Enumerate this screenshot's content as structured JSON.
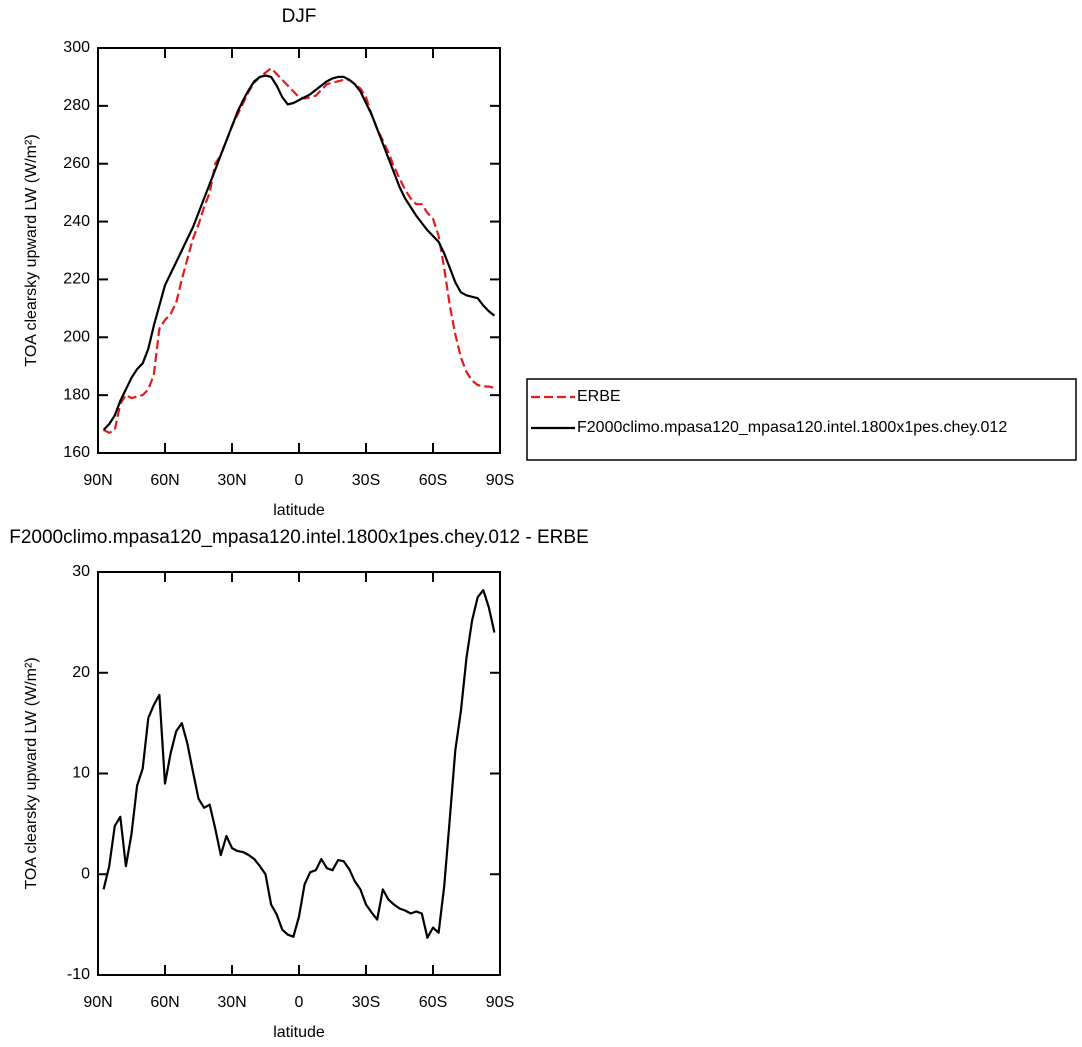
{
  "chart_data": [
    {
      "type": "line",
      "title": "DJF",
      "xlabel": "latitude",
      "ylabel": "TOA clearsky upward LW (W/m²)",
      "x": [
        87.5,
        85,
        82.5,
        80,
        77.5,
        75,
        72.5,
        70,
        67.5,
        65,
        62.5,
        60,
        57.5,
        55,
        52.5,
        50,
        47.5,
        45,
        42.5,
        40,
        37.5,
        35,
        32.5,
        30,
        27.5,
        25,
        22.5,
        20,
        17.5,
        15,
        12.5,
        10,
        7.5,
        5,
        2.5,
        0,
        -2.5,
        -5,
        -7.5,
        -10,
        -12.5,
        -15,
        -17.5,
        -20,
        -22.5,
        -25,
        -27.5,
        -30,
        -32.5,
        -35,
        -37.5,
        -40,
        -42.5,
        -45,
        -47.5,
        -50,
        -52.5,
        -55,
        -57.5,
        -60,
        -62.5,
        -65,
        -67.5,
        -70,
        -72.5,
        -75,
        -77.5,
        -80,
        -82.5,
        -85,
        -87.5
      ],
      "series": [
        {
          "name": "ERBE",
          "color": "#e41a1c",
          "dashed": true,
          "values": [
            168,
            167,
            168,
            177,
            180,
            179,
            179.5,
            180,
            182,
            187,
            203,
            206,
            208,
            212,
            220,
            227,
            234,
            239,
            245,
            250,
            260,
            263,
            268,
            273,
            277,
            281,
            285,
            288,
            290,
            291.5,
            293,
            291,
            289,
            287,
            285,
            283,
            282.5,
            283,
            283.5,
            285.5,
            287.5,
            288,
            288.5,
            289,
            289,
            287.5,
            286,
            283,
            277,
            272,
            268,
            264,
            259,
            255,
            251,
            248,
            246,
            246,
            243,
            241,
            235,
            224,
            211,
            201,
            193,
            188,
            185,
            183.5,
            183,
            183,
            182.5
          ]
        },
        {
          "name": "F2000climo.mpasa120_mpasa120.intel.1800x1pes.chey.012",
          "color": "#000000",
          "dashed": false,
          "values": [
            168,
            170,
            173,
            178,
            182,
            186,
            189,
            191,
            196,
            204,
            211,
            218,
            222,
            226,
            230,
            234,
            238,
            243,
            248,
            253,
            258,
            263,
            268,
            273,
            278,
            282,
            285.5,
            288.5,
            290,
            290.5,
            290,
            287,
            283,
            280.5,
            281,
            282,
            283,
            284,
            285.5,
            287,
            288.5,
            289.5,
            290,
            290,
            289,
            287.5,
            285,
            281,
            277,
            272,
            267,
            262,
            257,
            252,
            248,
            245,
            242,
            239.5,
            237,
            235,
            233,
            229,
            224,
            219,
            215.5,
            214.5,
            214,
            213.5,
            211,
            209,
            207.5
          ]
        }
      ],
      "xlim": [
        90,
        -90
      ],
      "xticks": [
        {
          "value": 90,
          "label": "90N"
        },
        {
          "value": 60,
          "label": "60N"
        },
        {
          "value": 30,
          "label": "30N"
        },
        0,
        {
          "value": -30,
          "label": "30S"
        },
        {
          "value": -60,
          "label": "60S"
        },
        {
          "value": -90,
          "label": "90S"
        }
      ],
      "ylim": [
        160,
        300
      ],
      "yticks": [
        160,
        180,
        200,
        220,
        240,
        260,
        280,
        300
      ],
      "legend": "right"
    },
    {
      "type": "line",
      "title": "F2000climo.mpasa120_mpasa120.intel.1800x1pes.chey.012 - ERBE",
      "xlabel": "latitude",
      "ylabel": "TOA clearsky upward LW (W/m²)",
      "x": [
        87.5,
        85,
        82.5,
        80,
        77.5,
        75,
        72.5,
        70,
        67.5,
        65,
        62.5,
        60,
        57.5,
        55,
        52.5,
        50,
        47.5,
        45,
        42.5,
        40,
        37.5,
        35,
        32.5,
        30,
        27.5,
        25,
        22.5,
        20,
        17.5,
        15,
        12.5,
        10,
        7.5,
        5,
        2.5,
        0,
        -2.5,
        -5,
        -7.5,
        -10,
        -12.5,
        -15,
        -17.5,
        -20,
        -22.5,
        -25,
        -27.5,
        -30,
        -32.5,
        -35,
        -37.5,
        -40,
        -42.5,
        -45,
        -47.5,
        -50,
        -52.5,
        -55,
        -57.5,
        -60,
        -62.5,
        -65,
        -67.5,
        -70,
        -72.5,
        -75,
        -77.5,
        -80,
        -82.5,
        -85,
        -87.5
      ],
      "values": [
        -1.5,
        0.8,
        4.8,
        5.7,
        0.8,
        4.0,
        8.8,
        10.5,
        15.5,
        16.8,
        17.8,
        9.0,
        12,
        14.2,
        15.0,
        13,
        10.2,
        7.5,
        6.6,
        6.9,
        4.5,
        1.9,
        3.8,
        2.6,
        2.3,
        2.2,
        1.9,
        1.5,
        0.8,
        0.0,
        -3.0,
        -4.0,
        -5.5,
        -6.0,
        -6.2,
        -4.2,
        -1.0,
        0.2,
        0.4,
        1.5,
        0.6,
        0.4,
        1.4,
        1.3,
        0.5,
        -0.7,
        -1.5,
        -3.0,
        -3.8,
        -4.5,
        -1.5,
        -2.5,
        -3.0,
        -3.4,
        -3.6,
        -3.9,
        -3.7,
        -3.9,
        -6.3,
        -5.3,
        -5.8,
        -1.2,
        5.5,
        12.3,
        16.2,
        21.5,
        25.2,
        27.5,
        28.2,
        26.5,
        24.0
      ],
      "color": "#000000",
      "xlim": [
        90,
        -90
      ],
      "xticks": [
        {
          "value": 90,
          "label": "90N"
        },
        {
          "value": 60,
          "label": "60N"
        },
        {
          "value": 30,
          "label": "30N"
        },
        0,
        {
          "value": -30,
          "label": "30S"
        },
        {
          "value": -60,
          "label": "60S"
        },
        {
          "value": -90,
          "label": "90S"
        }
      ],
      "ylim": [
        -10,
        30
      ],
      "yticks": [
        -10,
        0,
        10,
        20,
        30
      ]
    }
  ]
}
